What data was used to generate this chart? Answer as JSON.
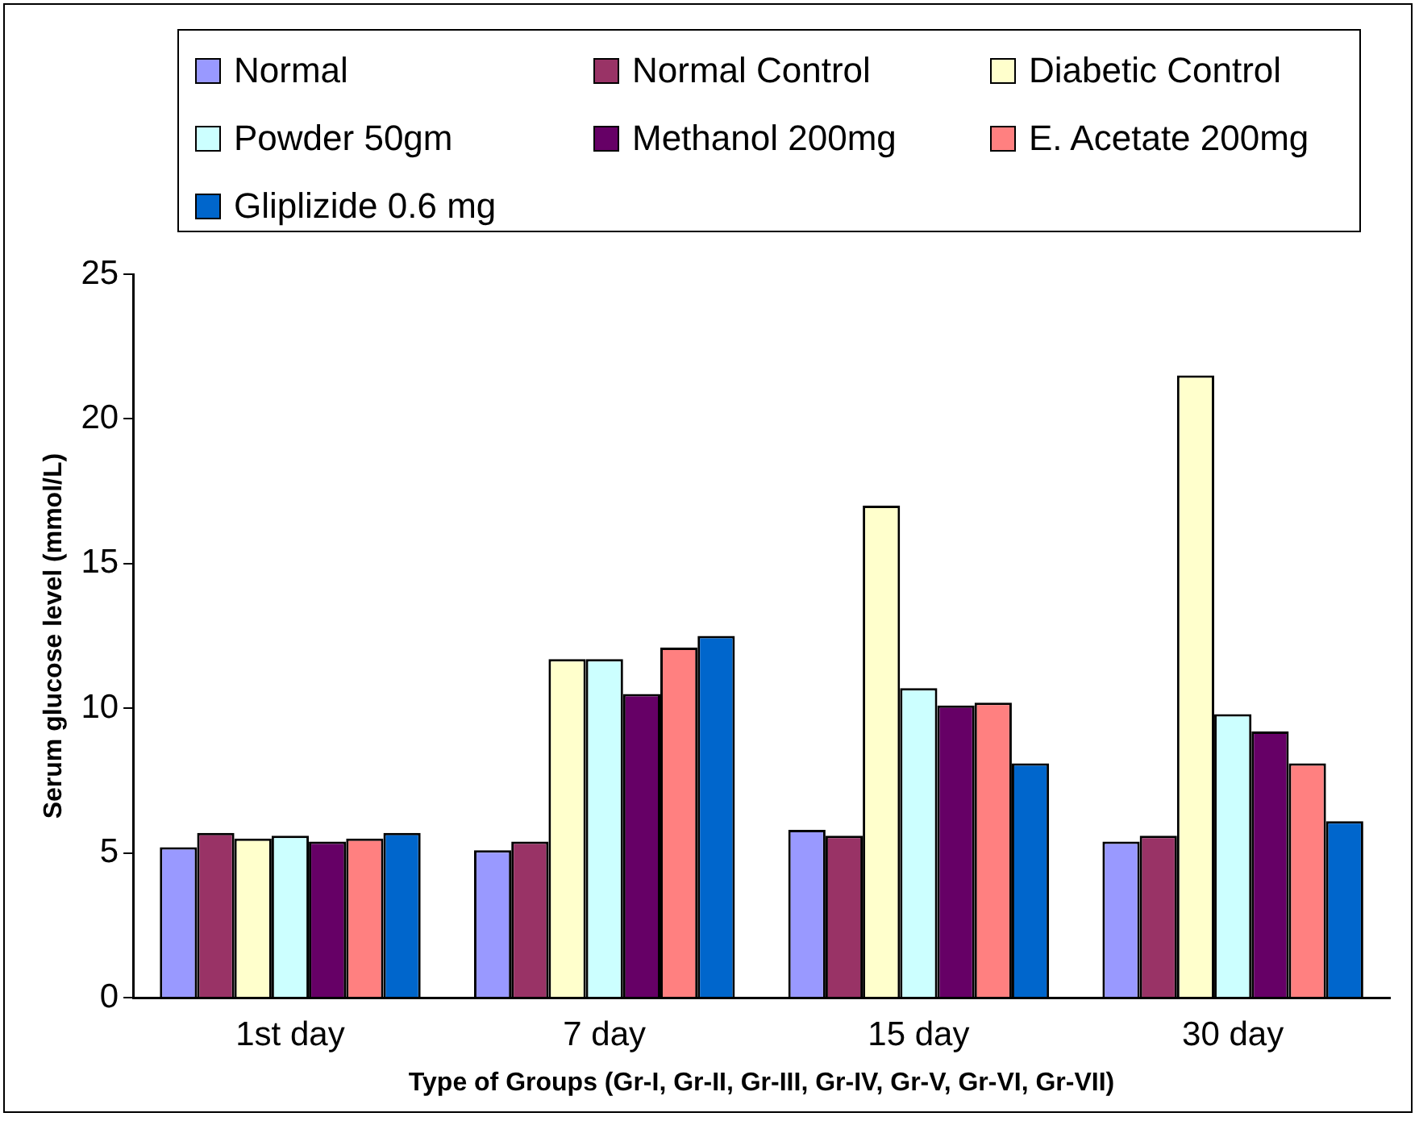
{
  "chart_data": {
    "type": "bar",
    "xlabel": "Type of Groups (Gr-I, Gr-II, Gr-III, Gr-IV, Gr-V, Gr-VI, Gr-VII)",
    "ylabel": "Serum glucose level (mmol/L)",
    "categories": [
      "1st day",
      "7 day",
      "15 day",
      "30 day"
    ],
    "series": [
      {
        "name": "Normal",
        "color": "#9999ff",
        "values": [
          5.2,
          5.1,
          5.8,
          5.4
        ]
      },
      {
        "name": "Normal Control",
        "color": "#993366",
        "values": [
          5.7,
          5.4,
          5.6,
          5.6
        ]
      },
      {
        "name": "Diabetic Control",
        "color": "#ffffcc",
        "values": [
          5.5,
          11.7,
          17.0,
          21.5
        ]
      },
      {
        "name": "Powder 50gm",
        "color": "#ccffff",
        "values": [
          5.6,
          11.7,
          10.7,
          9.8
        ]
      },
      {
        "name": "Methanol 200mg",
        "color": "#660066",
        "values": [
          5.4,
          10.5,
          10.1,
          9.2
        ]
      },
      {
        "name": "E. Acetate 200mg",
        "color": "#ff8080",
        "values": [
          5.5,
          12.1,
          10.2,
          8.1
        ]
      },
      {
        "name": "Gliplizide 0.6 mg",
        "color": "#0066cc",
        "values": [
          5.7,
          12.5,
          8.1,
          6.1
        ]
      }
    ],
    "ylim": [
      0,
      25
    ],
    "yticks": [
      0,
      5,
      10,
      15,
      20,
      25
    ],
    "grid": false,
    "legend": "top"
  }
}
